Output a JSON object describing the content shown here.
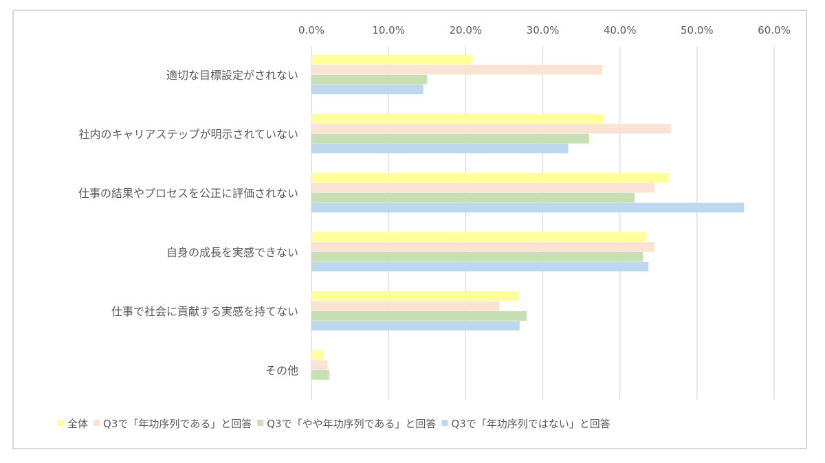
{
  "chart_data": {
    "type": "bar",
    "orientation": "horizontal",
    "categories": [
      "適切な目標設定がされない",
      "社内のキャリアステップが明示されていない",
      "仕事の結果やプロセスを公正に評価されない",
      "自身の成長を実感できない",
      "仕事で社会に貢献する実感を持てない",
      "その他"
    ],
    "series": [
      {
        "name": "全体",
        "color": "#FFFF99",
        "values": [
          20.8,
          37.8,
          46.3,
          43.4,
          26.8,
          1.5
        ]
      },
      {
        "name": "Q3で「年功序列である」と回答",
        "color": "#FBE3D3",
        "values": [
          37.7,
          46.6,
          44.5,
          44.5,
          24.4,
          2.1
        ]
      },
      {
        "name": "Q3で「やや年功序列である」と回答",
        "color": "#C6E0B4",
        "values": [
          15.0,
          36.0,
          41.9,
          43.0,
          27.9,
          2.3
        ]
      },
      {
        "name": "Q3で「年功序列ではない」と回答",
        "color": "#BDD7EE",
        "values": [
          14.5,
          33.3,
          56.1,
          43.7,
          27.0,
          0
        ]
      }
    ],
    "xlim": [
      0,
      60
    ],
    "x_ticks": [
      "0.0%",
      "10.0%",
      "20.0%",
      "30.0%",
      "40.0%",
      "50.0%",
      "60.0%"
    ],
    "axis_position": "top",
    "grid": true,
    "legend_position": "bottom"
  }
}
